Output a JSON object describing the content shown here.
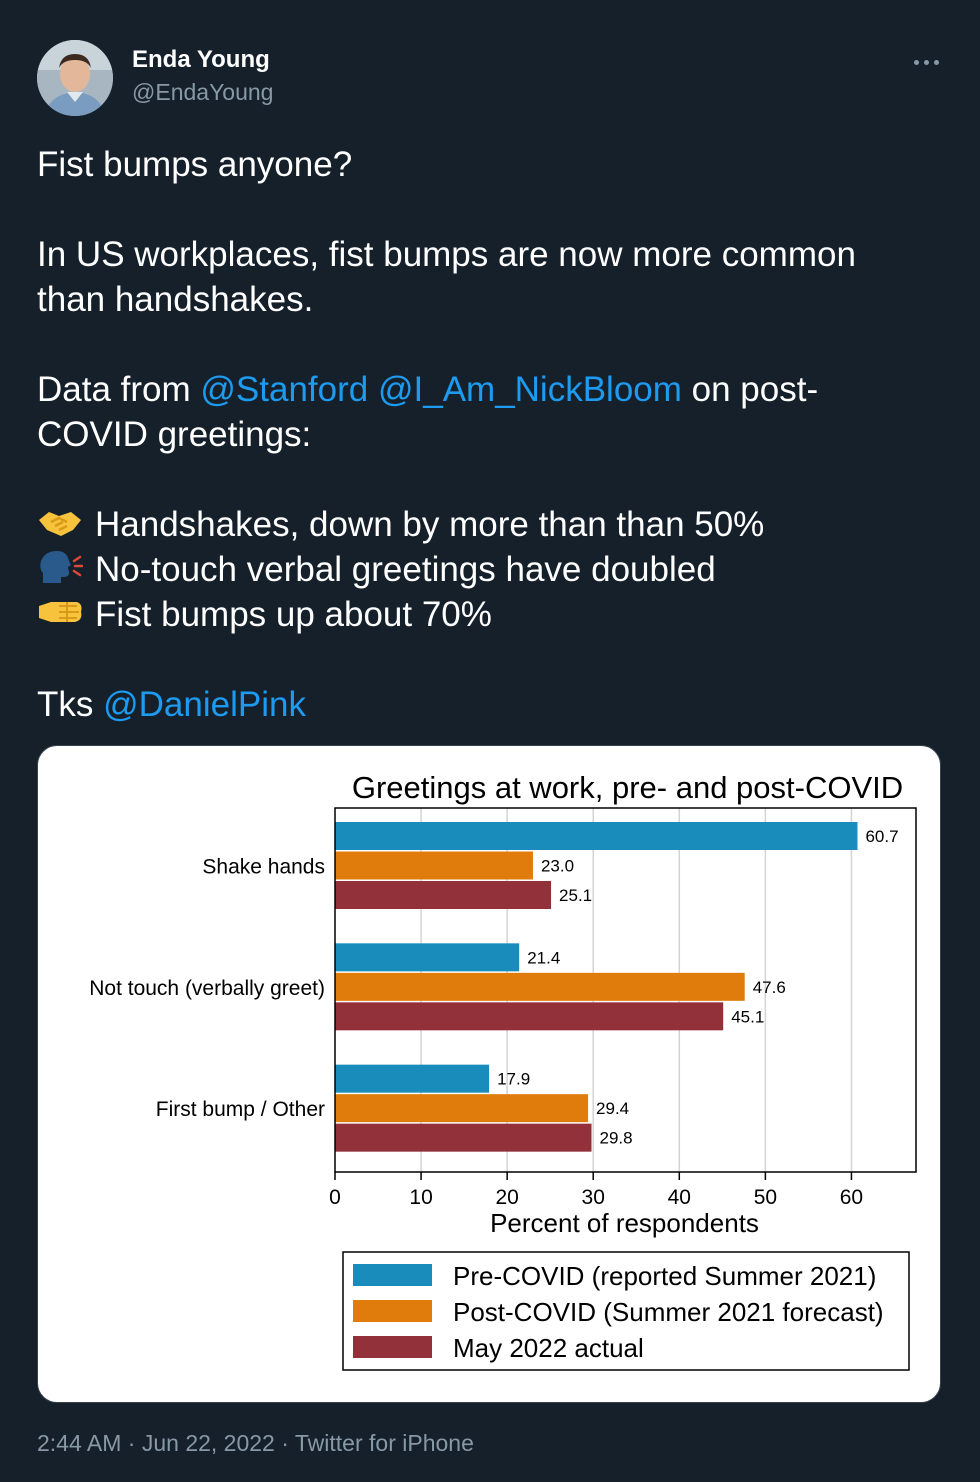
{
  "author": {
    "name": "Enda Young",
    "handle": "@EndaYoung",
    "avatar_icon": "profile-photo"
  },
  "tweet": {
    "line1": "Fist bumps anyone?",
    "line2": "In US workplaces, fist bumps are now more common",
    "line3": "than handshakes.",
    "line4_prefix": "Data from ",
    "mention_stanford": "@Stanford",
    "mention_bloom": "@I_Am_NickBloom",
    "line4_suffix": " on post-",
    "line5": "COVID greetings:",
    "bullet1": "Handshakes, down by more than than 50%",
    "bullet1_icon": "handshake-emoji",
    "bullet2": "No-touch verbal greetings have doubled",
    "bullet2_icon": "speaking-head-emoji",
    "bullet3": "Fist bumps up about 70%",
    "bullet3_icon": "fist-bump-emoji",
    "thanks_prefix": "Tks ",
    "mention_pink": "@DanielPink",
    "mention_color": "#1d9bf0"
  },
  "meta": {
    "time": "2:44 AM",
    "date": "Jun 22, 2022",
    "source": "Twitter for iPhone",
    "separator": " · "
  },
  "chart_data": {
    "type": "bar",
    "orientation": "horizontal",
    "title": "Greetings at work, pre- and post-COVID",
    "xlabel": "Percent of respondents",
    "ylabel": "",
    "xlim": [
      0,
      67.5
    ],
    "xticks": [
      0,
      10,
      20,
      30,
      40,
      50,
      60
    ],
    "grid": true,
    "legend_position": "bottom",
    "categories": [
      "Shake hands",
      "Not touch (verbally greet)",
      "First bump / Other"
    ],
    "series": [
      {
        "name": "Pre-COVID (reported Summer 2021)",
        "color": "#1a8cbb",
        "values": [
          60.7,
          21.4,
          17.9
        ]
      },
      {
        "name": "Post-COVID (Summer 2021 forecast)",
        "color": "#e07c0c",
        "values": [
          23.0,
          47.6,
          29.4
        ]
      },
      {
        "name": "May 2022 actual",
        "color": "#93313a",
        "values": [
          25.1,
          45.1,
          29.8
        ]
      }
    ]
  }
}
